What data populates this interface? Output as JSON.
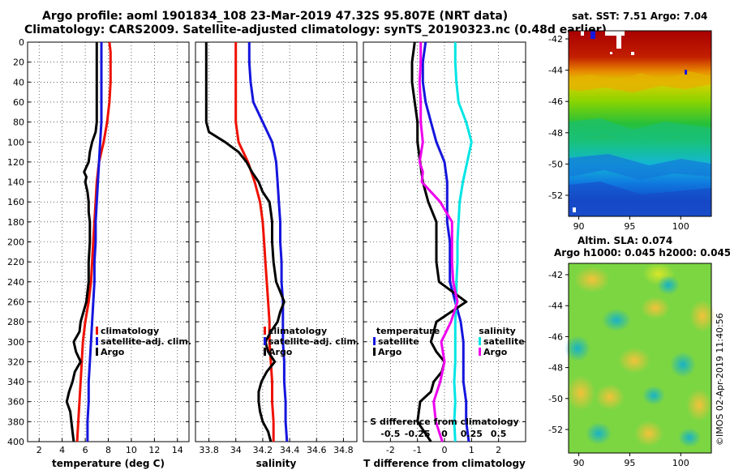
{
  "title_line1": "Argo profile: aoml 1901834_108 23-Mar-2019 47.32S 95.807E (NRT data)",
  "title_line2": "Climatology: CARS2009. Satellite-adjusted climatology: synTS_20190323.nc (0.48d earlier)",
  "colors": {
    "climatology": "#ee1100",
    "satellite": "#1515dd",
    "argo": "#000000",
    "sat_salinity": "#00e5e5",
    "argo_salinity": "#ee00ee"
  },
  "sst_title": "sat. SST: 7.51 Argo: 7.04",
  "sla_title1": "Altim. SLA: 0.074",
  "sla_title2": "Argo h1000: 0.045 h2000: 0.045",
  "footer": "©IMOS 02-Apr-2019 11:40:56",
  "map_lat_ticks": [
    "-42",
    "-44",
    "-46",
    "-48",
    "-50",
    "-52"
  ],
  "map_lon_ticks": [
    "90",
    "95",
    "100"
  ],
  "chart_data": [
    {
      "type": "line",
      "name": "temperature",
      "xlabel": "temperature (deg C)",
      "ylabel": "",
      "xlim": [
        1,
        15
      ],
      "ylim": [
        400,
        0
      ],
      "xticks": [
        "2",
        "4",
        "6",
        "8",
        "10",
        "12",
        "14"
      ],
      "yticks": [
        "0",
        "20",
        "40",
        "60",
        "80",
        "100",
        "120",
        "140",
        "160",
        "180",
        "200",
        "220",
        "240",
        "260",
        "280",
        "300",
        "320",
        "340",
        "360",
        "380",
        "400"
      ],
      "legend": [
        "climatology",
        "satellite-adj. clim.",
        "Argo"
      ],
      "series": [
        {
          "name": "climatology",
          "depth": [
            0,
            10,
            20,
            40,
            60,
            80,
            100,
            120,
            140,
            160,
            180,
            200,
            220,
            240,
            260,
            280,
            300,
            320,
            340,
            360,
            380,
            400
          ],
          "values": [
            8.1,
            8.2,
            8.2,
            8.2,
            8.1,
            7.9,
            7.6,
            7.2,
            7.0,
            6.9,
            6.8,
            6.7,
            6.6,
            6.5,
            6.3,
            6.0,
            5.8,
            5.7,
            5.6,
            5.5,
            5.4,
            5.3
          ]
        },
        {
          "name": "satellite-adj. clim.",
          "depth": [
            0,
            20,
            40,
            60,
            80,
            100,
            120,
            140,
            160,
            180,
            200,
            220,
            240,
            260,
            280,
            300,
            320,
            340,
            360,
            380,
            400
          ],
          "values": [
            7.4,
            7.4,
            7.4,
            7.4,
            7.4,
            7.3,
            7.2,
            7.1,
            7.0,
            6.9,
            6.9,
            6.8,
            6.8,
            6.7,
            6.6,
            6.5,
            6.4,
            6.3,
            6.3,
            6.2,
            6.2
          ]
        },
        {
          "name": "Argo",
          "depth": [
            0,
            20,
            40,
            60,
            80,
            90,
            100,
            110,
            120,
            130,
            135,
            140,
            150,
            160,
            170,
            180,
            200,
            220,
            240,
            260,
            280,
            290,
            300,
            310,
            320,
            330,
            340,
            350,
            360,
            370,
            380,
            390,
            400
          ],
          "values": [
            7.0,
            7.0,
            7.0,
            7.0,
            7.0,
            6.9,
            6.6,
            6.4,
            6.3,
            5.9,
            6.1,
            6.0,
            6.2,
            6.3,
            6.3,
            6.4,
            6.4,
            6.3,
            6.3,
            6.1,
            5.6,
            5.5,
            5.0,
            5.2,
            5.6,
            5.1,
            4.9,
            4.6,
            4.4,
            4.7,
            4.8,
            4.9,
            5.0
          ]
        }
      ]
    },
    {
      "type": "line",
      "name": "salinity",
      "xlabel": "salinity",
      "xlim": [
        33.7,
        34.9
      ],
      "ylim": [
        400,
        0
      ],
      "xticks": [
        "33.8",
        "34",
        "34.2",
        "34.4",
        "34.6",
        "34.8"
      ],
      "legend": [
        "climatology",
        "satellite-adj. clim.",
        "Argo"
      ],
      "series": [
        {
          "name": "climatology",
          "depth": [
            0,
            20,
            40,
            60,
            80,
            100,
            120,
            140,
            160,
            180,
            200,
            220,
            240,
            260,
            280,
            300,
            320,
            340,
            360,
            380,
            400
          ],
          "values": [
            34.0,
            34.0,
            34.0,
            34.0,
            34.0,
            34.02,
            34.09,
            34.14,
            34.18,
            34.2,
            34.21,
            34.22,
            34.23,
            34.24,
            34.25,
            34.25,
            34.26,
            34.27,
            34.27,
            34.28,
            34.28
          ]
        },
        {
          "name": "satellite-adj. clim.",
          "depth": [
            0,
            20,
            40,
            60,
            80,
            100,
            120,
            140,
            160,
            180,
            200,
            220,
            240,
            260,
            280,
            300,
            320,
            340,
            360,
            380,
            400
          ],
          "values": [
            34.1,
            34.1,
            34.11,
            34.13,
            34.2,
            34.27,
            34.3,
            34.31,
            34.32,
            34.33,
            34.33,
            34.34,
            34.34,
            34.35,
            34.35,
            34.35,
            34.36,
            34.36,
            34.37,
            34.37,
            34.38
          ]
        },
        {
          "name": "Argo",
          "depth": [
            0,
            20,
            40,
            60,
            80,
            90,
            100,
            110,
            120,
            130,
            140,
            150,
            160,
            170,
            180,
            200,
            220,
            240,
            250,
            260,
            270,
            280,
            290,
            300,
            310,
            320,
            330,
            340,
            350,
            360,
            370,
            380,
            390,
            400
          ],
          "values": [
            33.78,
            33.78,
            33.78,
            33.78,
            33.78,
            33.8,
            33.92,
            34.02,
            34.08,
            34.12,
            34.17,
            34.2,
            34.25,
            34.26,
            34.27,
            34.27,
            34.28,
            34.3,
            34.33,
            34.36,
            34.33,
            34.31,
            34.26,
            34.22,
            34.24,
            34.29,
            34.23,
            34.19,
            34.17,
            34.17,
            34.18,
            34.2,
            34.24,
            34.26
          ]
        }
      ]
    },
    {
      "type": "line",
      "name": "difference",
      "xlabel": "T difference from climatology",
      "xlabel_top": "S difference from climatology",
      "xlim": [
        -3,
        3
      ],
      "ylim": [
        400,
        0
      ],
      "xticks": [
        "-2",
        "-1",
        "0",
        "1",
        "2"
      ],
      "xticks_top": [
        "-0.5",
        "-0.25",
        "0",
        "0.25",
        "0.5"
      ],
      "legend_temperature_title": "temperature",
      "legend_salinity_title": "salinity",
      "legend_temperature": [
        "satellite",
        "Argo"
      ],
      "legend_salinity": [
        "satellite",
        "Argo"
      ],
      "series": [
        {
          "name": "T satellite",
          "depth": [
            0,
            20,
            40,
            60,
            80,
            100,
            120,
            140,
            160,
            180,
            200,
            220,
            240,
            260,
            280,
            300,
            320,
            340,
            360,
            380,
            400
          ],
          "values": [
            -0.7,
            -0.8,
            -0.8,
            -0.7,
            -0.5,
            -0.3,
            0.0,
            0.1,
            0.1,
            0.1,
            0.2,
            0.2,
            0.2,
            0.4,
            0.6,
            0.7,
            0.7,
            0.7,
            0.8,
            0.8,
            0.9
          ]
        },
        {
          "name": "S satellite",
          "depth": [
            0,
            20,
            40,
            60,
            80,
            100,
            120,
            140,
            160,
            180,
            200,
            220,
            240,
            260,
            280,
            300,
            320,
            340,
            360,
            380,
            400
          ],
          "values": [
            0.1,
            0.1,
            0.11,
            0.13,
            0.2,
            0.25,
            0.21,
            0.17,
            0.14,
            0.13,
            0.12,
            0.12,
            0.11,
            0.11,
            0.1,
            0.1,
            0.1,
            0.09,
            0.1,
            0.09,
            0.1
          ]
        },
        {
          "name": "T Argo",
          "depth": [
            0,
            20,
            40,
            60,
            80,
            100,
            120,
            140,
            160,
            180,
            200,
            220,
            240,
            260,
            280,
            290,
            300,
            310,
            320,
            330,
            340,
            350,
            360,
            380,
            400
          ],
          "values": [
            -1.1,
            -1.2,
            -1.2,
            -1.1,
            -1.0,
            -1.0,
            -0.9,
            -0.8,
            -0.6,
            -0.3,
            -0.3,
            -0.3,
            -0.2,
            0.8,
            -0.3,
            -0.4,
            -0.5,
            -0.3,
            0.0,
            -0.1,
            -0.4,
            -0.5,
            -0.9,
            -1.0,
            -0.5
          ]
        },
        {
          "name": "S Argo",
          "depth": [
            0,
            20,
            40,
            60,
            80,
            100,
            120,
            130,
            140,
            160,
            180,
            200,
            220,
            240,
            260,
            280,
            300,
            320,
            340,
            360,
            380,
            400
          ],
          "values": [
            -0.22,
            -0.22,
            -0.23,
            -0.22,
            -0.22,
            -0.2,
            -0.23,
            -0.2,
            -0.21,
            -0.04,
            0.07,
            0.07,
            0.07,
            0.08,
            0.12,
            0.06,
            -0.03,
            0.0,
            -0.04,
            -0.1,
            -0.08,
            -0.02
          ]
        }
      ]
    }
  ]
}
